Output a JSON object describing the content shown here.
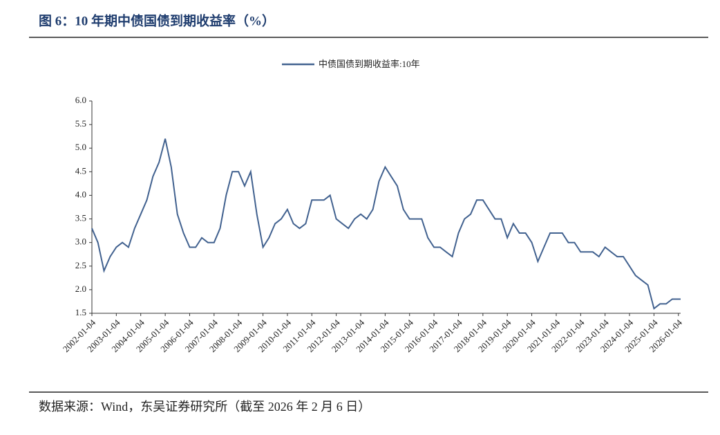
{
  "chart_data": {
    "type": "line",
    "title": "图 6：10 年期中债国债到期收益率（%）",
    "source": "数据来源：Wind，东吴证券研究所（截至 2026 年 2 月 6 日）",
    "x": [
      "2002-01-04",
      "2002-04-04",
      "2002-07-04",
      "2002-10-04",
      "2003-01-04",
      "2003-04-04",
      "2003-07-04",
      "2003-10-04",
      "2004-01-04",
      "2004-04-04",
      "2004-07-04",
      "2004-10-04",
      "2005-01-04",
      "2005-04-04",
      "2005-07-04",
      "2005-10-04",
      "2006-01-04",
      "2006-04-04",
      "2006-07-04",
      "2006-10-04",
      "2007-01-04",
      "2007-04-04",
      "2007-07-04",
      "2007-10-04",
      "2008-01-04",
      "2008-04-04",
      "2008-07-04",
      "2008-10-04",
      "2009-01-04",
      "2009-04-04",
      "2009-07-04",
      "2009-10-04",
      "2010-01-04",
      "2010-04-04",
      "2010-07-04",
      "2010-10-04",
      "2011-01-04",
      "2011-04-04",
      "2011-07-04",
      "2011-10-04",
      "2012-01-04",
      "2012-04-04",
      "2012-07-04",
      "2012-10-04",
      "2013-01-04",
      "2013-04-04",
      "2013-07-04",
      "2013-10-04",
      "2014-01-04",
      "2014-04-04",
      "2014-07-04",
      "2014-10-04",
      "2015-01-04",
      "2015-04-04",
      "2015-07-04",
      "2015-10-04",
      "2016-01-04",
      "2016-04-04",
      "2016-07-04",
      "2016-10-04",
      "2017-01-04",
      "2017-04-04",
      "2017-07-04",
      "2017-10-04",
      "2018-01-04",
      "2018-04-04",
      "2018-07-04",
      "2018-10-04",
      "2019-01-04",
      "2019-04-04",
      "2019-07-04",
      "2019-10-04",
      "2020-01-04",
      "2020-04-04",
      "2020-07-04",
      "2020-10-04",
      "2021-01-04",
      "2021-04-04",
      "2021-07-04",
      "2021-10-04",
      "2022-01-04",
      "2022-04-04",
      "2022-07-04",
      "2022-10-04",
      "2023-01-04",
      "2023-04-04",
      "2023-07-04",
      "2023-10-04",
      "2024-01-04",
      "2024-04-04",
      "2024-07-04",
      "2024-10-04",
      "2025-01-04",
      "2025-04-04",
      "2025-07-04",
      "2025-10-04",
      "2026-01-04",
      "2026-02-06"
    ],
    "series": [
      {
        "name": "中债国债到期收益率:10年",
        "color": "#41618f",
        "values": [
          3.3,
          3.0,
          2.4,
          2.7,
          2.9,
          3.0,
          2.9,
          3.3,
          3.6,
          3.9,
          4.4,
          4.7,
          5.2,
          4.6,
          3.6,
          3.2,
          2.9,
          2.9,
          3.1,
          3.0,
          3.0,
          3.3,
          4.0,
          4.5,
          4.5,
          4.2,
          4.5,
          3.6,
          2.9,
          3.1,
          3.4,
          3.5,
          3.7,
          3.4,
          3.3,
          3.4,
          3.9,
          3.9,
          3.9,
          4.0,
          3.5,
          3.4,
          3.3,
          3.5,
          3.6,
          3.5,
          3.7,
          4.3,
          4.6,
          4.4,
          4.2,
          3.7,
          3.5,
          3.5,
          3.5,
          3.1,
          2.9,
          2.9,
          2.8,
          2.7,
          3.2,
          3.5,
          3.6,
          3.9,
          3.9,
          3.7,
          3.5,
          3.5,
          3.1,
          3.4,
          3.2,
          3.2,
          3.0,
          2.6,
          2.9,
          3.2,
          3.2,
          3.2,
          3.0,
          3.0,
          2.8,
          2.8,
          2.8,
          2.7,
          2.9,
          2.8,
          2.7,
          2.7,
          2.5,
          2.3,
          2.2,
          2.1,
          1.6,
          1.7,
          1.7,
          1.8,
          1.8,
          1.8
        ]
      }
    ],
    "xlim": [
      "2002-01-04",
      "2026-02-06"
    ],
    "xticks": [
      "2002-01-04",
      "2003-01-04",
      "2004-01-04",
      "2005-01-04",
      "2006-01-04",
      "2007-01-04",
      "2008-01-04",
      "2009-01-04",
      "2010-01-04",
      "2011-01-04",
      "2012-01-04",
      "2013-01-04",
      "2014-01-04",
      "2015-01-04",
      "2016-01-04",
      "2017-01-04",
      "2018-01-04",
      "2019-01-04",
      "2020-01-04",
      "2021-01-04",
      "2022-01-04",
      "2023-01-04",
      "2024-01-04",
      "2025-01-04",
      "2026-01-04"
    ],
    "ylim": [
      1.5,
      6.0
    ],
    "yticks": [
      1.5,
      {
        "value": 2,
        "label": "2.0"
      },
      2.5,
      {
        "value": 3,
        "label": "3.0"
      },
      3.5,
      {
        "value": 4,
        "label": "4.0"
      },
      4.5,
      {
        "value": 5,
        "label": "5.0"
      },
      5.5,
      {
        "value": 6,
        "label": "6.0"
      }
    ],
    "grid": false,
    "legend": "top"
  }
}
